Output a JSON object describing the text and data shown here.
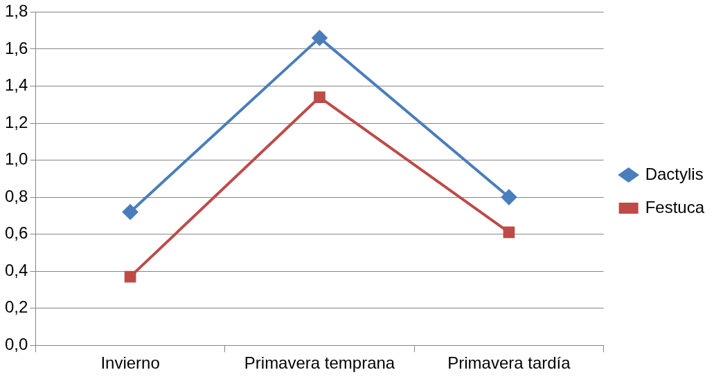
{
  "chart_data": {
    "type": "line",
    "categories": [
      "Invierno",
      "Primavera temprana",
      "Primavera tardía"
    ],
    "series": [
      {
        "name": "Dactylis",
        "color": "#4a7ebb",
        "values": [
          0.72,
          1.66,
          0.8
        ],
        "marker": "diamond"
      },
      {
        "name": "Festuca",
        "color": "#be4b48",
        "values": [
          0.37,
          1.34,
          0.61
        ],
        "marker": "square"
      }
    ],
    "ylim": [
      0,
      1.8
    ],
    "yticks": [
      {
        "value": 0,
        "label": "0,0"
      },
      {
        "value": 0.2,
        "label": "0,2"
      },
      {
        "value": 0.4,
        "label": "0,4"
      },
      {
        "value": 0.6,
        "label": "0,6"
      },
      {
        "value": 0.8,
        "label": "0,8"
      },
      {
        "value": 1,
        "label": "1,0"
      },
      {
        "value": 1.2,
        "label": "1,2"
      },
      {
        "value": 1.4,
        "label": "1,4"
      },
      {
        "value": 1.6,
        "label": "1,6"
      },
      {
        "value": 1.8,
        "label": "1,8"
      }
    ],
    "grid": "y",
    "legend": "right",
    "line_style": "solid"
  }
}
